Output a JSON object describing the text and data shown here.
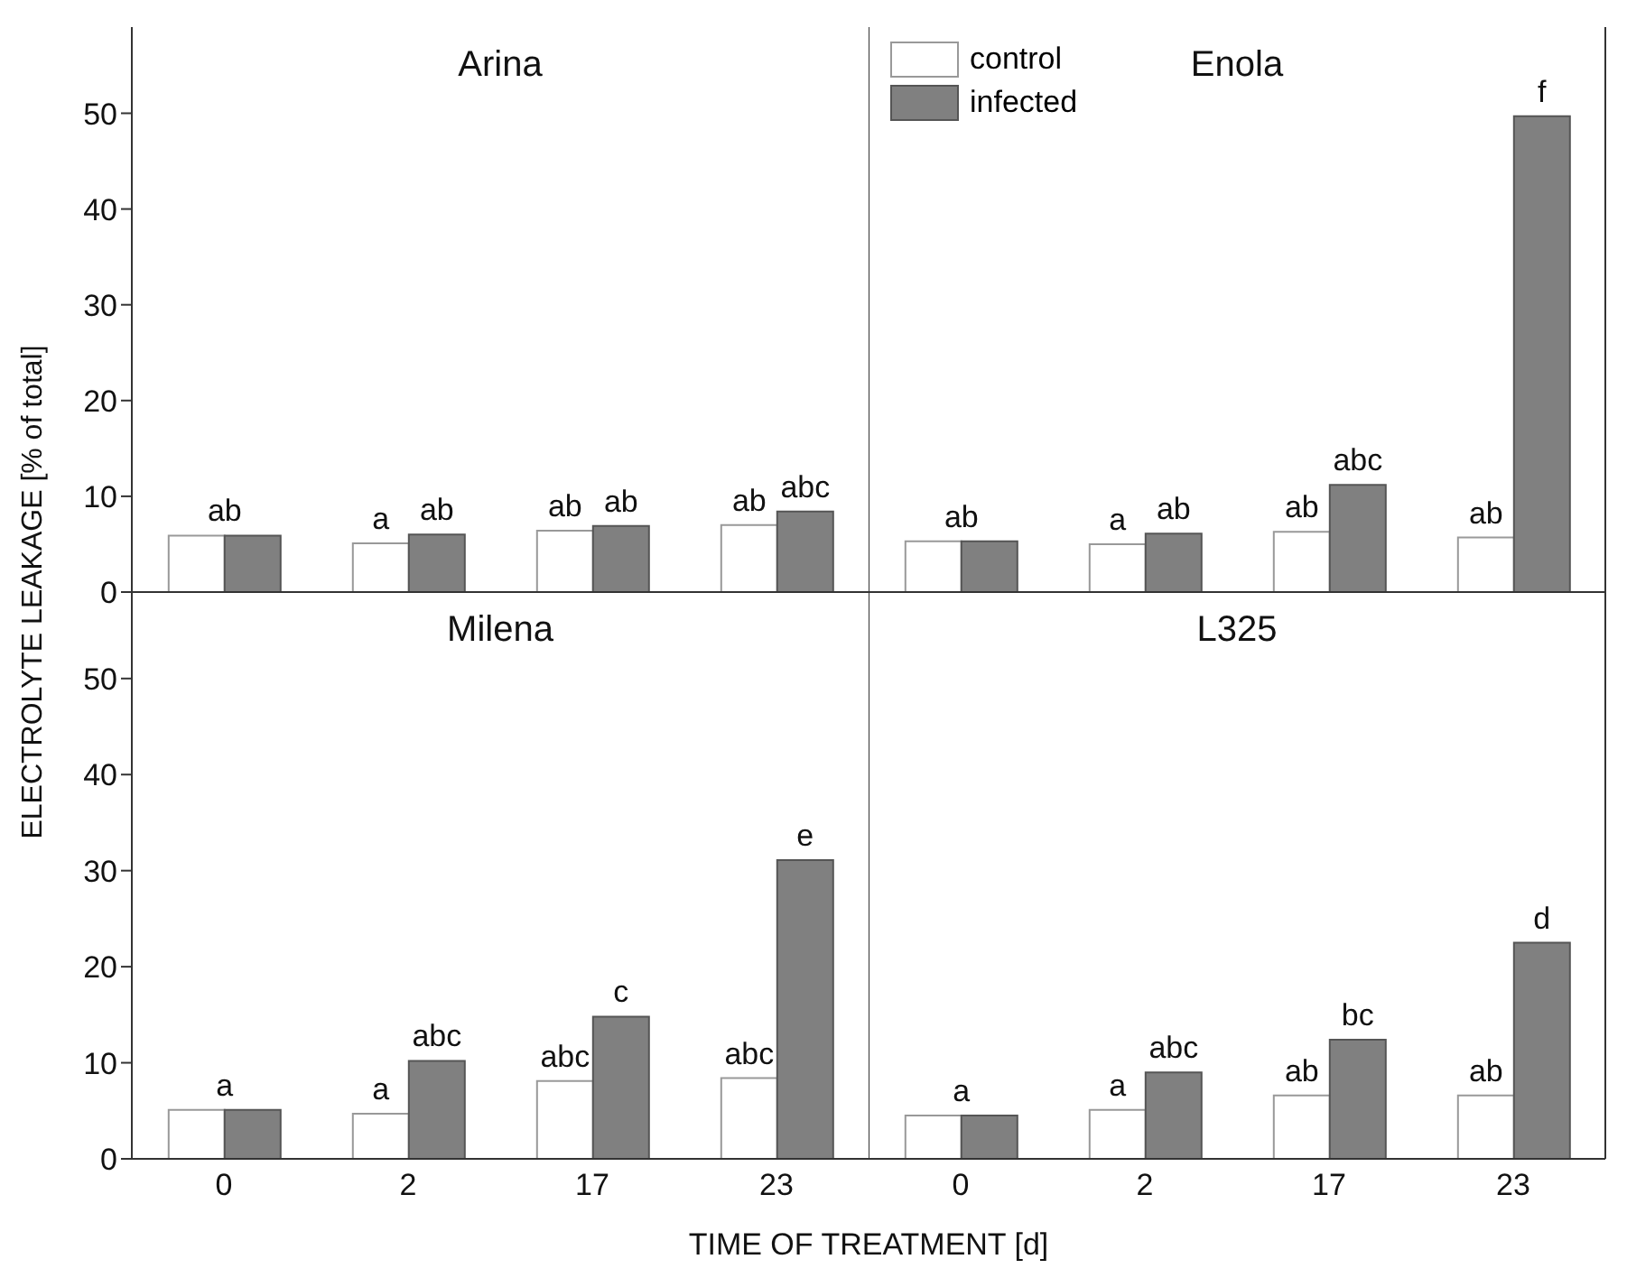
{
  "chart_data": [
    {
      "type": "bar",
      "title": "Arina",
      "ylabel": "ELECTROLYTE LEAKAGE [% of total]",
      "categories": [
        "0",
        "2",
        "17",
        "23"
      ],
      "ylim": [
        0,
        59
      ],
      "yticks": [
        0,
        10,
        20,
        30,
        40,
        50
      ],
      "tick_labels": "y",
      "series": [
        {
          "color": "#ffffff",
          "values": [
            5.9,
            5.1,
            6.4,
            7.0
          ],
          "value_labels": [
            "ab",
            "a",
            "ab",
            "ab"
          ]
        },
        {
          "color": "#808080",
          "values": [
            5.9,
            6.0,
            6.9,
            8.4
          ],
          "value_labels": [
            null,
            "ab",
            "ab",
            "abc"
          ]
        }
      ]
    },
    {
      "type": "bar",
      "title": "Enola",
      "categories": [
        "0",
        "2",
        "17",
        "23"
      ],
      "ylim": [
        0,
        59
      ],
      "yticks": [
        0,
        10,
        20,
        30,
        40,
        50
      ],
      "tick_labels": false,
      "legend": "top left",
      "series": [
        {
          "name": "control",
          "color": "#ffffff",
          "values": [
            5.3,
            5.0,
            6.3,
            5.7
          ],
          "value_labels": [
            "ab",
            "a",
            "ab",
            "ab"
          ]
        },
        {
          "name": "infected",
          "color": "#808080",
          "values": [
            5.3,
            6.1,
            11.2,
            49.7
          ],
          "value_labels": [
            null,
            "ab",
            "abc",
            "f"
          ]
        }
      ]
    },
    {
      "type": "bar",
      "title": "Milena",
      "xlabel": "TIME OF TREATMENT [d]",
      "categories": [
        "0",
        "2",
        "17",
        "23"
      ],
      "ylim": [
        0,
        59
      ],
      "yticks": [
        0,
        10,
        20,
        30,
        40,
        50
      ],
      "series": [
        {
          "color": "#ffffff",
          "values": [
            5.1,
            4.7,
            8.1,
            8.4
          ],
          "value_labels": [
            "a",
            "a",
            "abc",
            "abc"
          ]
        },
        {
          "color": "#808080",
          "values": [
            5.1,
            10.2,
            14.8,
            31.1
          ],
          "value_labels": [
            null,
            "abc",
            "c",
            "e"
          ]
        }
      ]
    },
    {
      "type": "bar",
      "title": "L325",
      "categories": [
        "0",
        "2",
        "17",
        "23"
      ],
      "ylim": [
        0,
        59
      ],
      "yticks": [
        0,
        10,
        20,
        30,
        40,
        50
      ],
      "tick_labels": "x",
      "series": [
        {
          "color": "#ffffff",
          "values": [
            4.5,
            5.1,
            6.6,
            6.6
          ],
          "value_labels": [
            "a",
            "a",
            "ab",
            "ab"
          ]
        },
        {
          "color": "#808080",
          "values": [
            4.5,
            9.0,
            12.4,
            22.5
          ],
          "value_labels": [
            null,
            "abc",
            "bc",
            "d"
          ]
        }
      ]
    }
  ]
}
